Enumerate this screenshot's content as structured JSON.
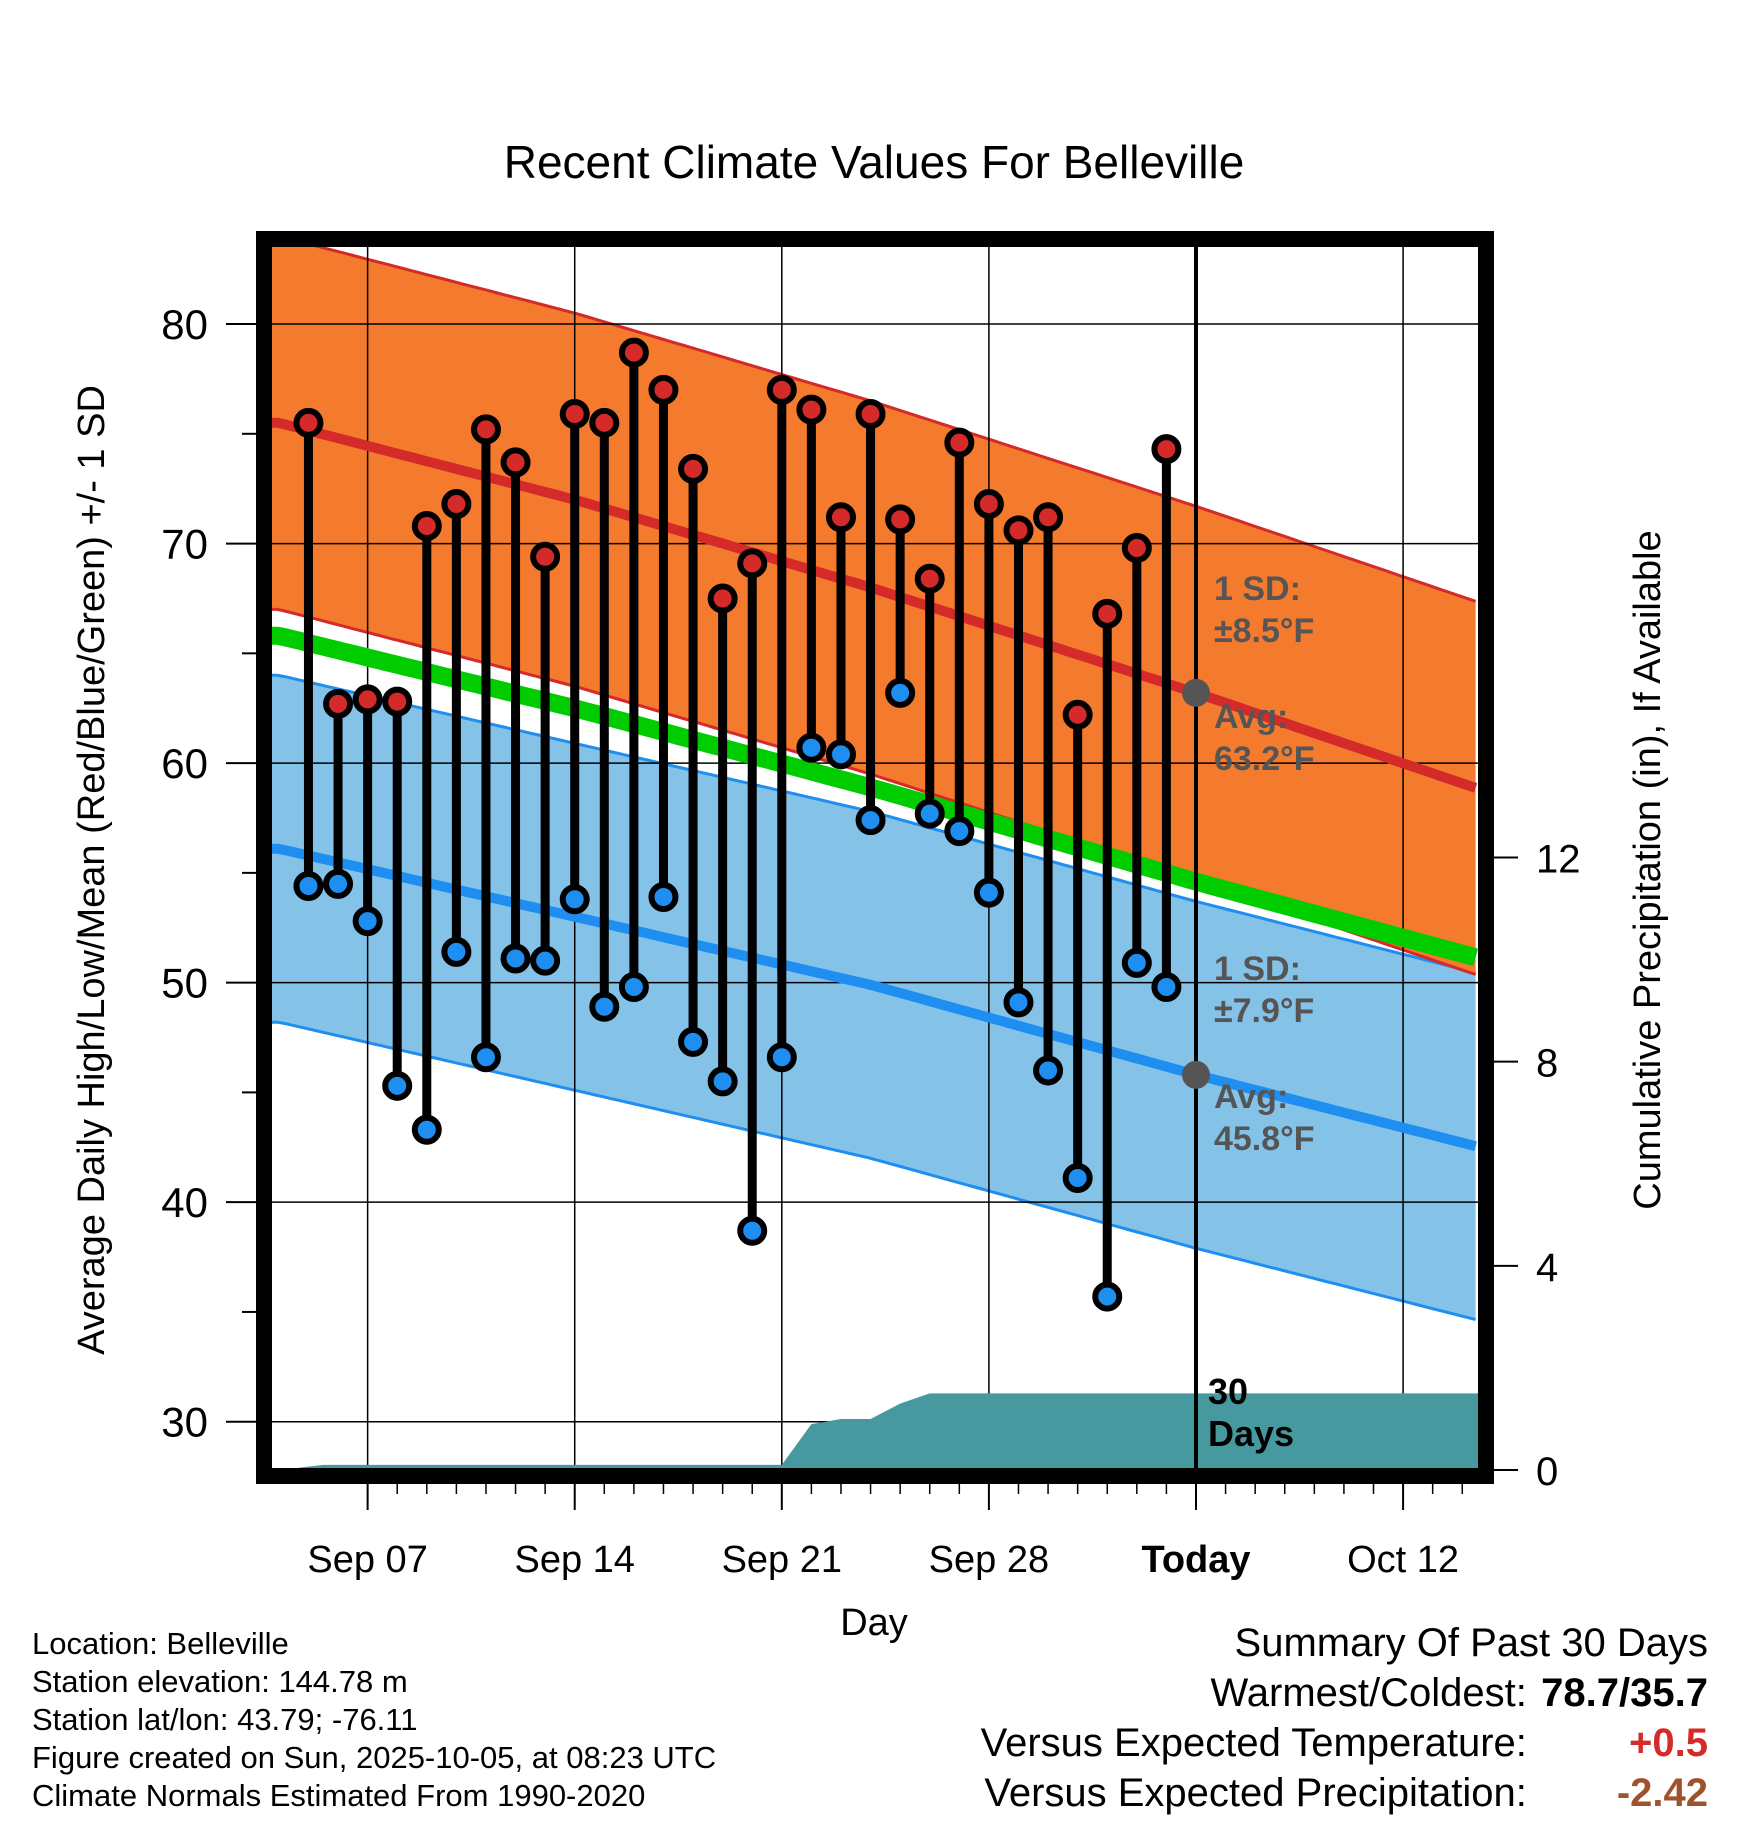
{
  "title": "Recent Climate Values For Belleville",
  "colors": {
    "high_band": "#f47a2e",
    "high_line": "#d42a2a",
    "low_band": "#85c2e8",
    "low_line": "#1e8ef0",
    "mean_line": "#00cc00",
    "precip": "#45999f",
    "marker_high": "#d42a2a",
    "marker_low": "#1e8ef0",
    "annotation": "#555555",
    "temp_anomaly": "#d42a2a",
    "precip_anomaly": "#a0522d"
  },
  "chart_data": {
    "type": "line",
    "title": "Recent Climate Values For Belleville",
    "xlabel": "Day",
    "ylabel": "Average Daily High/Low/Mean (Red/Blue/Green) +/- 1 SD",
    "y2label": "Cumulative Precipitation (in), If Available",
    "x_tick_labels": [
      "Sep 07",
      "Sep 14",
      "Sep 21",
      "Sep 28",
      "Today",
      "Oct 12"
    ],
    "x_tick_days": [
      7,
      14,
      21,
      28,
      35,
      42
    ],
    "xlim": [
      3.7,
      44.6
    ],
    "ylim": [
      27.8,
      83.6
    ],
    "y_ticks": [
      30,
      40,
      50,
      60,
      70,
      80
    ],
    "y2lim": [
      0,
      24
    ],
    "y2_ticks": [
      0,
      4,
      8,
      12
    ],
    "days": [
      5,
      6,
      7,
      8,
      9,
      10,
      11,
      12,
      13,
      14,
      15,
      16,
      17,
      18,
      19,
      20,
      21,
      22,
      23,
      24,
      25,
      26,
      27,
      28,
      29,
      30,
      31,
      32,
      33,
      34
    ],
    "daily_high": [
      75.5,
      62.7,
      62.9,
      62.8,
      70.8,
      71.8,
      75.2,
      73.7,
      69.4,
      75.9,
      75.5,
      78.7,
      77.0,
      73.4,
      67.5,
      69.1,
      77.0,
      76.1,
      71.2,
      75.9,
      71.1,
      68.4,
      74.6,
      71.8,
      70.6,
      71.2,
      62.2,
      66.8,
      69.8,
      74.3
    ],
    "daily_low": [
      54.4,
      54.5,
      52.8,
      45.3,
      43.3,
      51.4,
      46.6,
      51.1,
      51.0,
      53.8,
      48.9,
      49.8,
      53.9,
      47.3,
      45.5,
      38.7,
      46.6,
      60.7,
      60.4,
      57.4,
      63.2,
      57.7,
      56.9,
      54.1,
      49.1,
      46.0,
      41.1,
      35.7,
      50.9,
      49.8
    ],
    "normal_high_mean": [
      75.5,
      72.0,
      68.0,
      63.2,
      58.8
    ],
    "normal_high_sd": 8.5,
    "normal_low_mean": [
      56.1,
      53.0,
      49.9,
      45.8,
      42.5
    ],
    "normal_low_sd": 7.9,
    "normal_mean": [
      65.8,
      62.5,
      58.9,
      54.6,
      51.1
    ],
    "normal_days": [
      4,
      14,
      24,
      35,
      44.6
    ],
    "precip_days": [
      4,
      5.5,
      21,
      22,
      23,
      24,
      25,
      26,
      44.6
    ],
    "precip_cum": [
      0,
      0.1,
      0.1,
      0.9,
      1.0,
      1.0,
      1.3,
      1.5,
      1.5
    ],
    "annotations": {
      "high_sd": "1 SD:",
      "high_sd_val": "±8.5°F",
      "high_avg": "Avg:",
      "high_avg_val": "63.2°F",
      "low_sd": "1 SD:",
      "low_sd_val": "±7.9°F",
      "low_avg": "Avg:",
      "low_avg_val": "45.8°F",
      "window_1": "30",
      "window_2": "Days"
    }
  },
  "footer": {
    "location": "Location: Belleville",
    "elevation": "Station elevation: 144.78 m",
    "latlon": "Station lat/lon: 43.79; -76.11",
    "created": "Figure created on Sun, 2025-10-05, at 08:23 UTC",
    "normals": "Climate Normals Estimated From 1990-2020"
  },
  "summary": {
    "heading": "Summary Of Past 30 Days",
    "warm_cold_label": "Warmest/Coldest:",
    "warm_cold_value": "78.7/35.7",
    "temp_label": "Versus Expected Temperature:",
    "temp_value": "+0.5",
    "precip_label": "Versus Expected Precipitation:",
    "precip_value": "-2.42"
  }
}
